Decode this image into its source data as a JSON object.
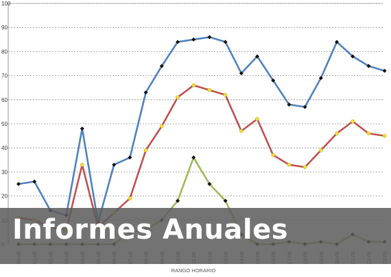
{
  "banner": {
    "title": "Informes Anuales"
  },
  "chart_data": {
    "type": "line",
    "title": "",
    "xlabel": "RANGO HORARIO",
    "ylabel": "",
    "ylim": [
      0,
      100
    ],
    "yticks": [
      "0",
      "10",
      "20",
      "30",
      "40",
      "50",
      "60",
      "70",
      "80",
      "90",
      "100"
    ],
    "grid": true,
    "categories": [
      "00:00",
      "01:00",
      "02:00",
      "03:00",
      "04:00",
      "05:00",
      "06:00",
      "07:00",
      "08:00",
      "09:00",
      "10:00",
      "11:00",
      "12:00",
      "13:00",
      "14:00",
      "15:00",
      "16:00",
      "17:00",
      "18:00",
      "19:00",
      "20:00",
      "21:00",
      "22:00",
      "23:00"
    ],
    "series": [
      {
        "color": "#4f81bd",
        "marker": "diamond",
        "marker_color": "#111111",
        "values": [
          25,
          26,
          14,
          12,
          48,
          9,
          33,
          36,
          63,
          74,
          84,
          85,
          86,
          84,
          71,
          78,
          68,
          58,
          57,
          69,
          84,
          78,
          74,
          72
        ]
      },
      {
        "color": "#c0504d",
        "marker": "dot",
        "marker_color": "#f0e040",
        "values": [
          11,
          10,
          7,
          6,
          33,
          7,
          13,
          19,
          39,
          49,
          61,
          66,
          64,
          62,
          47,
          52,
          37,
          33,
          32,
          39,
          46,
          51,
          46,
          45
        ]
      },
      {
        "color": "#9bbb59",
        "marker": "diamond",
        "marker_color": "#111111",
        "values": [
          0,
          0,
          0,
          0,
          0,
          0,
          0,
          5,
          6,
          10,
          18,
          36,
          25,
          18,
          4,
          0,
          0,
          1,
          0,
          1,
          0,
          4,
          1,
          1
        ]
      }
    ]
  }
}
